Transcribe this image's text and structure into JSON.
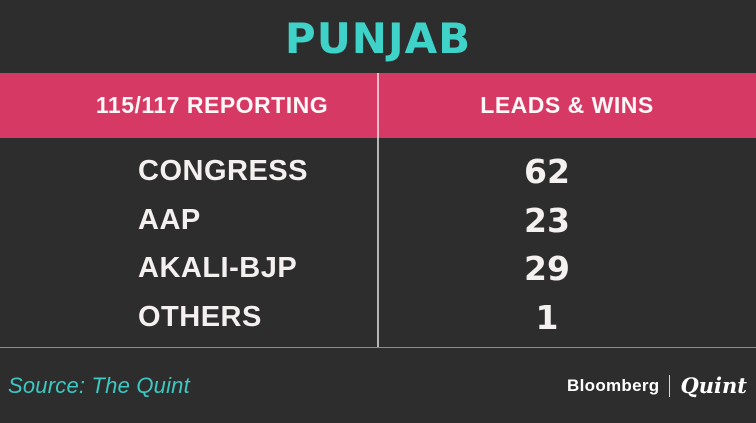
{
  "title": "PUNJAB",
  "colors": {
    "background": "#2e2d2d",
    "header_pink": "#d63a64",
    "accent_teal": "#3fd2c9",
    "text_white": "#f3f0ef"
  },
  "table": {
    "columns": [
      {
        "label": "115/117 REPORTING"
      },
      {
        "label": "LEADS & WINS"
      }
    ],
    "rows": [
      {
        "party": "CONGRESS",
        "value": "62"
      },
      {
        "party": "AAP",
        "value": "23"
      },
      {
        "party": "AKALI-BJP",
        "value": "29"
      },
      {
        "party": "OTHERS",
        "value": "1"
      }
    ]
  },
  "footer": {
    "source": "Source: The Quint",
    "brand": {
      "bloomberg": "Bloomberg",
      "quint": "Quint"
    }
  },
  "chart_data": {
    "type": "table",
    "title": "PUNJAB",
    "columns": [
      "115/117 REPORTING",
      "LEADS & WINS"
    ],
    "categories": [
      "CONGRESS",
      "AAP",
      "AKALI-BJP",
      "OTHERS"
    ],
    "values": [
      62,
      23,
      29,
      1
    ],
    "reporting": "115/117",
    "source": "Source: The Quint",
    "layout_hints": {
      "header_background": "#d63a64",
      "page_background": "#2e2d2d",
      "title_color": "#3fd2c9"
    }
  }
}
